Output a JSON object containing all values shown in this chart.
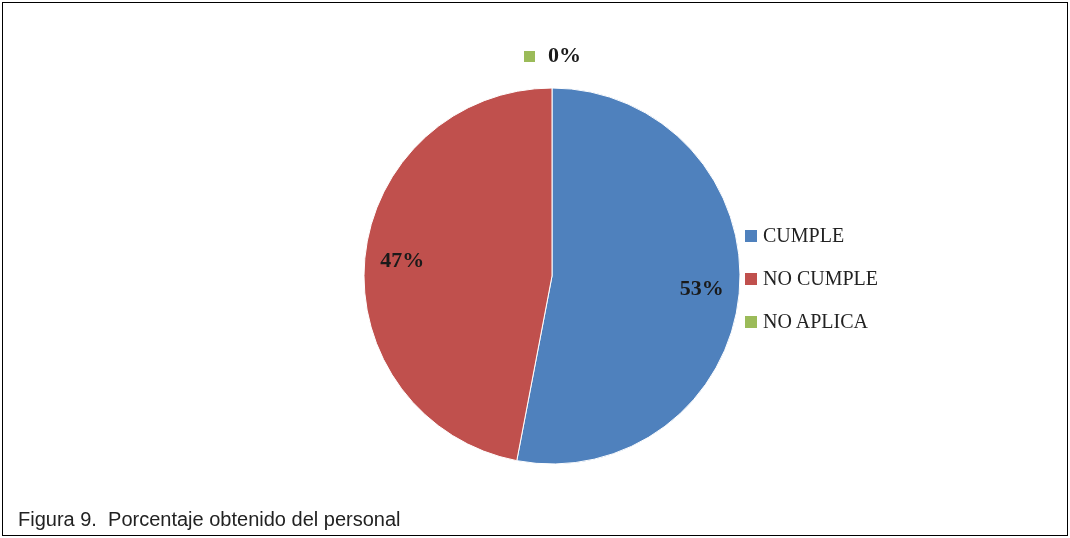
{
  "chart_data": {
    "type": "pie",
    "categories": [
      "CUMPLE",
      "NO CUMPLE",
      "NO APLICA"
    ],
    "values": [
      53,
      47,
      0
    ],
    "colors": [
      "#4f81bd",
      "#c0504d",
      "#9bbb59"
    ],
    "value_labels": [
      "53%",
      "47%",
      "0%"
    ],
    "legend": "right",
    "annotations": [
      "Figura 9.  Porcentaje obtenido del personal"
    ]
  }
}
